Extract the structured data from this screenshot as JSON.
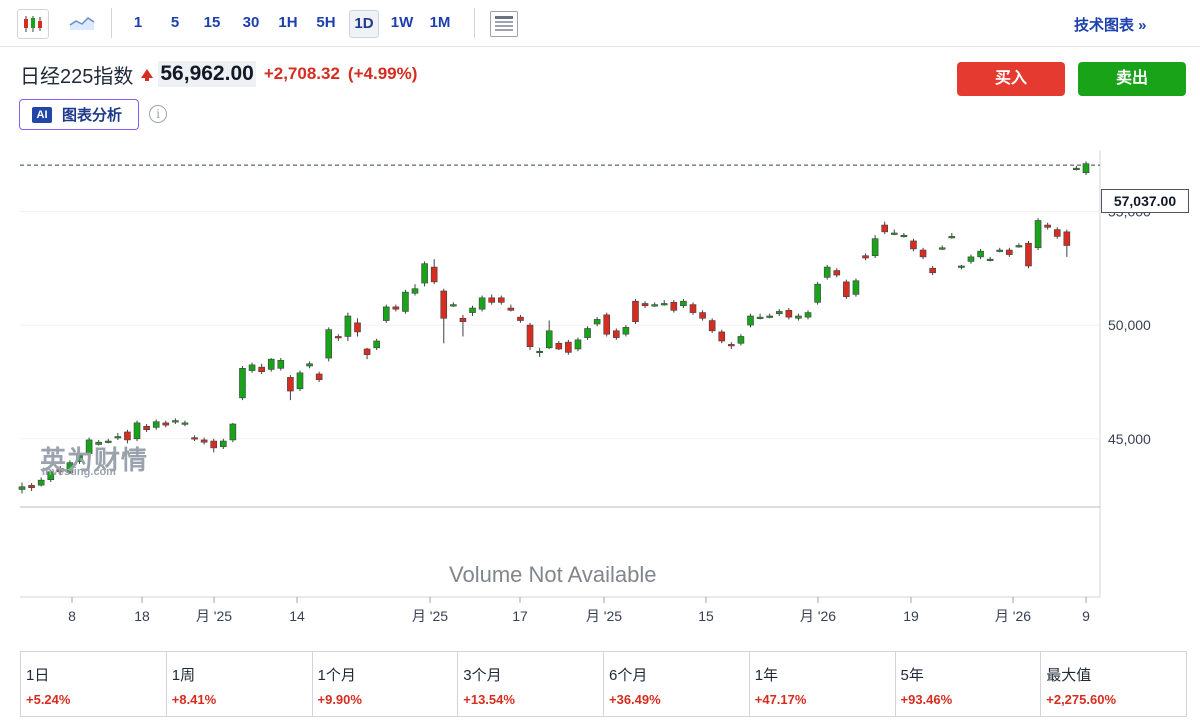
{
  "toolbar": {
    "timeframes": [
      "1",
      "5",
      "15",
      "30",
      "1H",
      "5H",
      "1D",
      "1W",
      "1M"
    ],
    "active_timeframe": "1D",
    "tech_chart_link": "技术图表 »"
  },
  "header": {
    "index_name": "日经225指数",
    "price": "56,962.00",
    "change": "+2,708.32",
    "change_pct": "(+4.99%)",
    "buy_label": "买入",
    "sell_label": "卖出",
    "ai_badge": "AI",
    "ai_label": "图表分析",
    "info_icon": "i"
  },
  "chart": {
    "watermark_cn": "英为财情",
    "watermark_en": "Investing.com",
    "volume_message": "Volume Not Available",
    "current_price_label": "57,037.00",
    "y_ticks": [
      "55,000",
      "50,000",
      "45,000"
    ],
    "x_ticks": [
      "8",
      "18",
      "月 '25",
      "14",
      "月 '25",
      "17",
      "月 '25",
      "15",
      "月 '26",
      "19",
      "月 '26",
      "9"
    ]
  },
  "chart_data": {
    "type": "candlestick",
    "ylim": [
      42000,
      57700
    ],
    "current_price": 57037,
    "candles": [
      [
        42770,
        42890,
        42600,
        43080
      ],
      [
        42950,
        42850,
        42700,
        43050
      ],
      [
        42960,
        43180,
        42900,
        43300
      ],
      [
        43200,
        43550,
        43100,
        43650
      ],
      [
        43700,
        43550,
        43400,
        43800
      ],
      [
        43500,
        43950,
        43450,
        44050
      ],
      [
        44000,
        44250,
        43900,
        44350
      ],
      [
        44350,
        44950,
        44250,
        45050
      ],
      [
        44750,
        44850,
        44700,
        44950
      ],
      [
        44850,
        44900,
        44800,
        45000
      ],
      [
        45050,
        45100,
        44950,
        45250
      ],
      [
        45300,
        44950,
        44800,
        45400
      ],
      [
        45000,
        45700,
        44900,
        45800
      ],
      [
        45550,
        45400,
        45300,
        45650
      ],
      [
        45500,
        45750,
        45400,
        45850
      ],
      [
        45700,
        45600,
        45500,
        45800
      ],
      [
        45750,
        45800,
        45650,
        45900
      ],
      [
        45650,
        45700,
        45550,
        45800
      ],
      [
        45050,
        45000,
        44900,
        45150
      ],
      [
        44950,
        44850,
        44750,
        45050
      ],
      [
        44900,
        44600,
        44400,
        45000
      ],
      [
        44650,
        44900,
        44550,
        45000
      ],
      [
        44950,
        45650,
        44850,
        45700
      ],
      [
        46800,
        48100,
        46700,
        48200
      ],
      [
        48000,
        48250,
        47900,
        48350
      ],
      [
        48150,
        47950,
        47850,
        48300
      ],
      [
        48050,
        48500,
        47950,
        48550
      ],
      [
        48100,
        48450,
        48000,
        48550
      ],
      [
        47700,
        47100,
        46700,
        47800
      ],
      [
        47200,
        47900,
        47100,
        48000
      ],
      [
        48200,
        48300,
        48100,
        48400
      ],
      [
        47850,
        47600,
        47500,
        47950
      ],
      [
        48550,
        49800,
        48400,
        49900
      ],
      [
        49500,
        49450,
        49300,
        49600
      ],
      [
        49500,
        50400,
        49300,
        50550
      ],
      [
        50100,
        49700,
        49500,
        50300
      ],
      [
        48950,
        48700,
        48500,
        49000
      ],
      [
        49000,
        49300,
        48900,
        49400
      ],
      [
        50200,
        50800,
        50100,
        50900
      ],
      [
        50800,
        50700,
        50600,
        50900
      ],
      [
        50600,
        51450,
        50500,
        51550
      ],
      [
        51400,
        51600,
        51300,
        51800
      ],
      [
        51850,
        52700,
        51700,
        52800
      ],
      [
        52550,
        51900,
        51800,
        52900
      ],
      [
        51500,
        50300,
        49200,
        51600
      ],
      [
        50900,
        50900,
        50800,
        51000
      ],
      [
        50300,
        50150,
        49500,
        50450
      ],
      [
        50550,
        50750,
        50400,
        50850
      ],
      [
        50700,
        51200,
        50600,
        51300
      ],
      [
        51200,
        51000,
        50900,
        51350
      ],
      [
        51200,
        51000,
        50900,
        51300
      ],
      [
        50750,
        50650,
        50600,
        50900
      ],
      [
        50350,
        50200,
        50100,
        50450
      ],
      [
        50000,
        49050,
        48900,
        50100
      ],
      [
        48850,
        48850,
        48600,
        49000
      ],
      [
        49000,
        49750,
        48950,
        50200
      ],
      [
        49200,
        48950,
        48900,
        49300
      ],
      [
        49250,
        48800,
        48700,
        49350
      ],
      [
        48950,
        49350,
        48850,
        49450
      ],
      [
        49450,
        49850,
        49350,
        49950
      ],
      [
        50050,
        50250,
        49950,
        50350
      ],
      [
        50450,
        49600,
        49500,
        50550
      ],
      [
        49750,
        49450,
        49350,
        49850
      ],
      [
        49600,
        49900,
        49500,
        50000
      ],
      [
        51050,
        50150,
        50050,
        51150
      ],
      [
        50950,
        50850,
        50750,
        51050
      ],
      [
        50850,
        50900,
        50800,
        51000
      ],
      [
        50900,
        50950,
        50850,
        51100
      ],
      [
        51000,
        50650,
        50550,
        51100
      ],
      [
        50850,
        51050,
        50750,
        51150
      ],
      [
        50900,
        50550,
        50450,
        51000
      ],
      [
        50550,
        50300,
        50200,
        50650
      ],
      [
        50200,
        49750,
        49650,
        50300
      ],
      [
        49700,
        49300,
        49200,
        49800
      ],
      [
        49150,
        49100,
        48950,
        49250
      ],
      [
        49200,
        49500,
        49100,
        49600
      ],
      [
        50000,
        50400,
        49900,
        50500
      ],
      [
        50350,
        50350,
        50250,
        50500
      ],
      [
        50350,
        50400,
        50300,
        50500
      ],
      [
        50500,
        50600,
        50400,
        50700
      ],
      [
        50650,
        50350,
        50250,
        50750
      ],
      [
        50300,
        50400,
        50200,
        50500
      ],
      [
        50350,
        50550,
        50250,
        50650
      ],
      [
        51000,
        51800,
        50900,
        51900
      ],
      [
        52100,
        52550,
        52000,
        52650
      ],
      [
        52400,
        52200,
        52100,
        52500
      ],
      [
        51900,
        51250,
        51150,
        52000
      ],
      [
        51350,
        51950,
        51250,
        52050
      ],
      [
        53050,
        52950,
        52850,
        53150
      ],
      [
        53050,
        53800,
        52950,
        53950
      ],
      [
        54400,
        54100,
        54000,
        54550
      ],
      [
        54050,
        54050,
        53950,
        54200
      ],
      [
        53900,
        53950,
        53850,
        54050
      ],
      [
        53700,
        53350,
        53250,
        53800
      ],
      [
        53300,
        53000,
        52900,
        53400
      ],
      [
        52500,
        52300,
        52200,
        52600
      ],
      [
        53400,
        53400,
        53300,
        53500
      ],
      [
        53900,
        53900,
        53800,
        54050
      ],
      [
        52550,
        52600,
        52450,
        52650
      ],
      [
        52800,
        53000,
        52700,
        53100
      ],
      [
        53000,
        53250,
        52900,
        53350
      ],
      [
        52900,
        52900,
        52800,
        53000
      ],
      [
        53300,
        53300,
        53200,
        53400
      ],
      [
        53300,
        53100,
        53000,
        53400
      ],
      [
        53500,
        53500,
        53400,
        53600
      ],
      [
        53600,
        52600,
        52500,
        53700
      ],
      [
        53400,
        54600,
        53300,
        54700
      ],
      [
        54400,
        54300,
        54200,
        54500
      ],
      [
        54200,
        53900,
        53800,
        54300
      ],
      [
        54100,
        53500,
        53000,
        54200
      ],
      [
        56900,
        56900,
        56800,
        57000
      ],
      [
        56700,
        57100,
        56600,
        57200
      ]
    ]
  },
  "performance": [
    {
      "label": "1日",
      "value": "+5.24%"
    },
    {
      "label": "1周",
      "value": "+8.41%"
    },
    {
      "label": "1个月",
      "value": "+9.90%"
    },
    {
      "label": "3个月",
      "value": "+13.54%"
    },
    {
      "label": "6个月",
      "value": "+36.49%"
    },
    {
      "label": "1年",
      "value": "+47.17%"
    },
    {
      "label": "5年",
      "value": "+93.46%"
    },
    {
      "label": "最大值",
      "value": "+2,275.60%"
    }
  ],
  "colors": {
    "up": "#d62d20",
    "down": "#19a319",
    "accent": "#1e40af"
  }
}
